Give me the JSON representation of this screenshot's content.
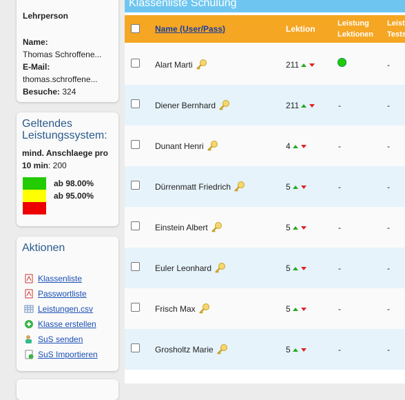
{
  "sidebar": {
    "teacher": {
      "heading": "Lehrperson",
      "name_label": "Name:",
      "name": "Thomas Schroffene...",
      "email_label": "E-Mail:",
      "email": "thomas.schroffene...",
      "visits_label": "Besuche:",
      "visits": "324"
    },
    "system": {
      "title": "Geltendes Leistungssystem:",
      "min_label": "mind. Anschlaege pro 10 min",
      "min_value": ": 200",
      "levels": [
        {
          "color": "#22cc00",
          "label": "ab 98.00%"
        },
        {
          "color": "#ffff00",
          "label": "ab 95.00%"
        },
        {
          "color": "#ee0000"
        }
      ]
    },
    "actions": {
      "title": "Aktionen",
      "items": [
        "Klassenliste",
        "Passwortliste",
        "Leistungen.csv",
        "Klasse erstellen",
        "SuS senden",
        "SuS Importieren"
      ]
    }
  },
  "table": {
    "title": "Klassenliste Schulung",
    "headers": [
      "Name (User/Pass)",
      "Lektion",
      "Leistung Lektionen",
      "Leistung Tests"
    ],
    "rows": [
      {
        "name": "Alart Marti",
        "lektion": "211",
        "leistung_color": "#22cc00",
        "tests": "-"
      },
      {
        "name": "Diener Bernhard",
        "lektion": "211",
        "leistung": "-",
        "tests": "-"
      },
      {
        "name": "Dunant Henri",
        "lektion": "4",
        "leistung": "-",
        "tests": "-"
      },
      {
        "name": "Dürrenmatt Friedrich",
        "lektion": "5",
        "leistung": "-",
        "tests": "-"
      },
      {
        "name": "Einstein Albert",
        "lektion": "5",
        "leistung": "-",
        "tests": "-"
      },
      {
        "name": "Euler Leonhard",
        "lektion": "5",
        "leistung": "-",
        "tests": "-"
      },
      {
        "name": "Frisch Max",
        "lektion": "5",
        "leistung": "-",
        "tests": "-"
      },
      {
        "name": "Grosholtz Marie",
        "lektion": "5",
        "leistung": "-",
        "tests": "-"
      }
    ]
  }
}
